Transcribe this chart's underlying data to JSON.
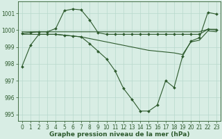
{
  "series": [
    {
      "x": [
        0,
        1,
        2,
        3,
        4,
        5,
        6,
        7,
        8,
        9,
        10,
        11,
        12,
        13,
        14,
        15,
        16,
        17,
        18,
        19,
        20,
        21,
        22,
        23
      ],
      "y": [
        999.9,
        999.9,
        999.9,
        999.9,
        999.9,
        999.9,
        999.9,
        999.9,
        999.9,
        999.9,
        999.9,
        999.9,
        999.9,
        999.9,
        999.9,
        999.9,
        999.9,
        999.9,
        999.9,
        999.9,
        999.9,
        999.9,
        1000.05,
        1000.05
      ],
      "color": "#2d6a2d",
      "linewidth": 0.8,
      "has_markers": false
    },
    {
      "x": [
        0,
        1,
        2,
        3,
        4,
        5,
        6,
        7,
        8,
        9,
        10,
        11,
        12,
        13,
        14,
        15,
        16,
        17,
        18,
        19,
        20,
        21,
        22,
        23
      ],
      "y": [
        999.8,
        999.85,
        999.9,
        999.9,
        1000.1,
        1001.15,
        1001.25,
        1001.2,
        1000.6,
        999.85,
        999.75,
        999.75,
        999.75,
        999.75,
        999.75,
        999.75,
        999.75,
        999.75,
        999.75,
        999.75,
        999.75,
        999.75,
        1000.05,
        1000.0
      ],
      "color": "#2d6a2d",
      "linewidth": 0.8,
      "has_markers": true,
      "markersize": 2.0
    },
    {
      "x": [
        0,
        1,
        2,
        3,
        4,
        5,
        6,
        7,
        8,
        9,
        10,
        11,
        12,
        13,
        14,
        15,
        16,
        17,
        18,
        19,
        20,
        21,
        22,
        23
      ],
      "y": [
        999.75,
        999.75,
        999.75,
        999.75,
        999.75,
        999.7,
        999.65,
        999.6,
        999.5,
        999.4,
        999.3,
        999.2,
        999.1,
        999.0,
        998.9,
        998.8,
        998.75,
        998.7,
        998.65,
        998.55,
        999.3,
        999.4,
        999.95,
        999.9
      ],
      "color": "#2d6a2d",
      "linewidth": 0.8,
      "has_markers": false
    },
    {
      "x": [
        0,
        1,
        2,
        3,
        4,
        5,
        6,
        7,
        8,
        9,
        10,
        11,
        12,
        13,
        14,
        15,
        16,
        17,
        18,
        19,
        20,
        21,
        22,
        23
      ],
      "y": [
        997.85,
        999.1,
        999.75,
        999.75,
        999.75,
        999.7,
        999.65,
        999.6,
        999.2,
        998.75,
        998.3,
        997.6,
        996.55,
        995.9,
        995.2,
        995.2,
        995.55,
        997.0,
        996.6,
        998.45,
        999.35,
        999.55,
        1001.05,
        1000.95
      ],
      "color": "#2d6a2d",
      "linewidth": 0.8,
      "has_markers": true,
      "markersize": 2.0
    }
  ],
  "xlim": [
    -0.5,
    23.5
  ],
  "ylim": [
    994.6,
    1001.7
  ],
  "yticks": [
    995,
    996,
    997,
    998,
    999,
    1000,
    1001
  ],
  "ytick_labels": [
    "995",
    "996",
    "997",
    "998",
    "999",
    "1000",
    "1001"
  ],
  "xticks": [
    0,
    1,
    2,
    3,
    4,
    5,
    6,
    7,
    8,
    9,
    10,
    11,
    12,
    13,
    14,
    15,
    16,
    17,
    18,
    19,
    20,
    21,
    22,
    23
  ],
  "xlabel": "Graphe pression niveau de la mer (hPa)",
  "background_color": "#d8ede4",
  "grid_color": "#b8d8cc",
  "line_color": "#2d5a2d",
  "text_color": "#2d5a2d",
  "label_fontsize": 6.5,
  "tick_fontsize": 5.5
}
